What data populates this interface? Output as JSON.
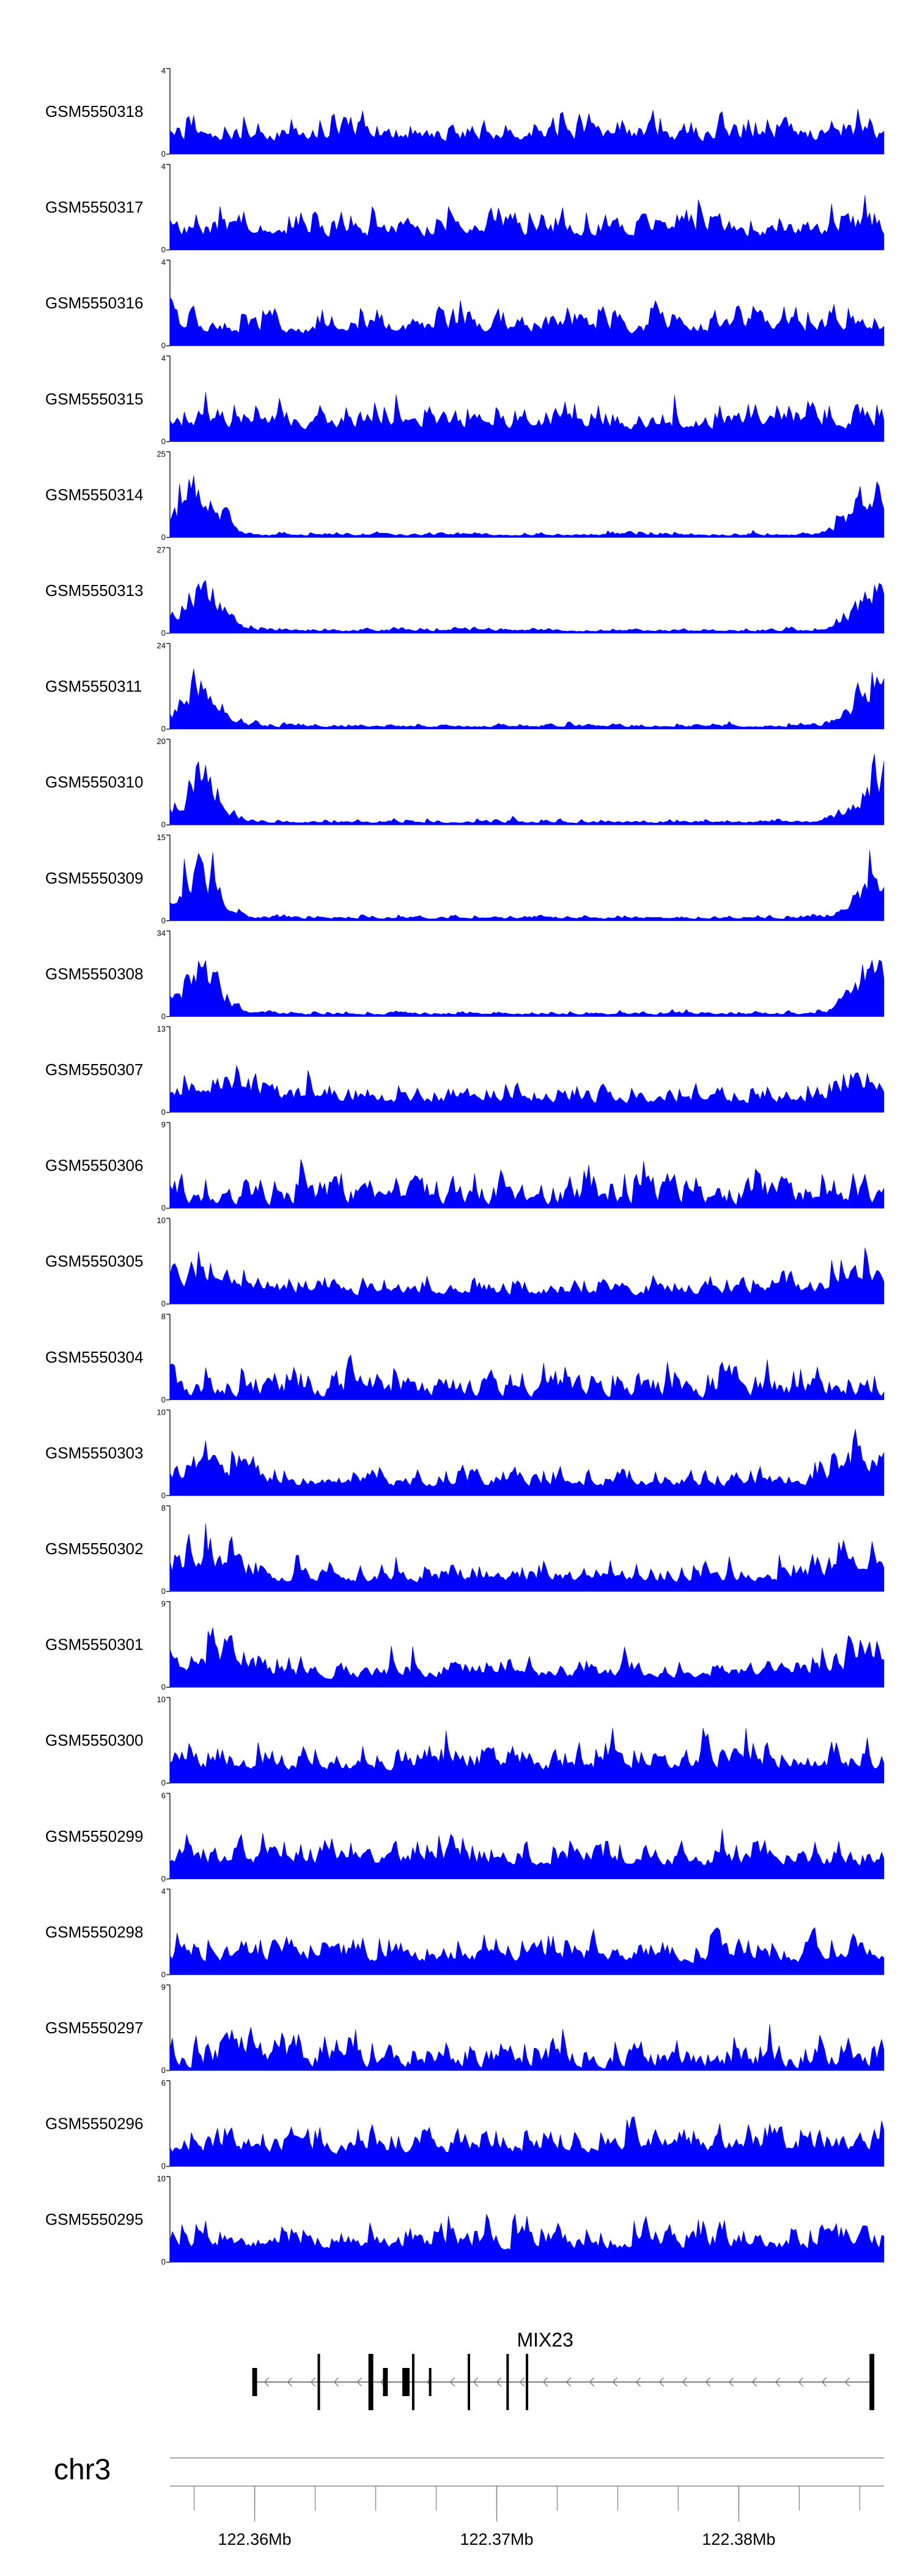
{
  "chart_data": {
    "type": "area",
    "chromosome": "chr3",
    "x_range": [
      122.3565,
      122.386
    ],
    "x_unit": "Mb",
    "x_ticks": [
      {
        "value": 122.36,
        "label": "122.36Mb"
      },
      {
        "value": 122.37,
        "label": "122.37Mb"
      },
      {
        "value": 122.38,
        "label": "122.38Mb"
      }
    ],
    "fill_color": "#0000ff",
    "series": [
      {
        "name": "GSM5550318",
        "ymax": 4,
        "labels": [
          "4",
          "0"
        ],
        "profile": "flat"
      },
      {
        "name": "GSM5550317",
        "ymax": 4,
        "labels": [
          "4",
          "0"
        ],
        "profile": "flat"
      },
      {
        "name": "GSM5550316",
        "ymax": 4,
        "labels": [
          "4",
          "0"
        ],
        "profile": "flat"
      },
      {
        "name": "GSM5550315",
        "ymax": 4,
        "labels": [
          "4",
          "0"
        ],
        "profile": "flat"
      },
      {
        "name": "GSM5550314",
        "ymax": 25,
        "labels": [
          "25",
          "0"
        ],
        "profile": "edges"
      },
      {
        "name": "GSM5550313",
        "ymax": 27,
        "labels": [
          "27",
          "0"
        ],
        "profile": "edges"
      },
      {
        "name": "GSM5550311",
        "ymax": 24,
        "labels": [
          "24",
          "0"
        ],
        "profile": "edges"
      },
      {
        "name": "GSM5550310",
        "ymax": 20,
        "labels": [
          "20",
          "0"
        ],
        "profile": "edges"
      },
      {
        "name": "GSM5550309",
        "ymax": 15,
        "labels": [
          "15",
          "0"
        ],
        "profile": "edges"
      },
      {
        "name": "GSM5550308",
        "ymax": 34,
        "labels": [
          "34",
          "0"
        ],
        "profile": "edges"
      },
      {
        "name": "GSM5550307",
        "ymax": 13,
        "labels": [
          "13",
          "0"
        ],
        "profile": "mild"
      },
      {
        "name": "GSM5550306",
        "ymax": 9,
        "labels": [
          "9",
          "0"
        ],
        "profile": "sparse"
      },
      {
        "name": "GSM5550305",
        "ymax": 10,
        "labels": [
          "10",
          "0"
        ],
        "profile": "mild"
      },
      {
        "name": "GSM5550304",
        "ymax": 8,
        "labels": [
          "8",
          "0"
        ],
        "profile": "sparse"
      },
      {
        "name": "GSM5550303",
        "ymax": 10,
        "labels": [
          "10",
          "0"
        ],
        "profile": "mild"
      },
      {
        "name": "GSM5550302",
        "ymax": 8,
        "labels": [
          "8",
          "0"
        ],
        "profile": "mild"
      },
      {
        "name": "GSM5550301",
        "ymax": 9,
        "labels": [
          "9",
          "0"
        ],
        "profile": "mild"
      },
      {
        "name": "GSM5550300",
        "ymax": 10,
        "labels": [
          "10",
          "0"
        ],
        "profile": "flat"
      },
      {
        "name": "GSM5550299",
        "ymax": 6,
        "labels": [
          "6",
          "0"
        ],
        "profile": "flat"
      },
      {
        "name": "GSM5550298",
        "ymax": 4,
        "labels": [
          "4",
          "0"
        ],
        "profile": "flat"
      },
      {
        "name": "GSM5550297",
        "ymax": 9,
        "labels": [
          "9",
          "0"
        ],
        "profile": "sparse"
      },
      {
        "name": "GSM5550296",
        "ymax": 6,
        "labels": [
          "6",
          "0"
        ],
        "profile": "flat"
      },
      {
        "name": "GSM5550295",
        "ymax": 10,
        "labels": [
          "10",
          "0"
        ],
        "profile": "flat"
      }
    ],
    "gene": {
      "name": "MIX23",
      "strand": "-",
      "start": 122.3599,
      "end": 122.3856,
      "exons": [
        {
          "start": 122.3599,
          "end": 122.3601
        },
        {
          "start": 122.3626,
          "end": 122.3627
        },
        {
          "start": 122.3647,
          "end": 122.3649
        },
        {
          "start": 122.3653,
          "end": 122.3655
        },
        {
          "start": 122.3661,
          "end": 122.3664
        },
        {
          "start": 122.3665,
          "end": 122.3666
        },
        {
          "start": 122.3672,
          "end": 122.3673
        },
        {
          "start": 122.3688,
          "end": 122.3689
        },
        {
          "start": 122.3704,
          "end": 122.3705
        },
        {
          "start": 122.3712,
          "end": 122.3713
        },
        {
          "start": 122.3854,
          "end": 122.3856
        }
      ]
    }
  }
}
